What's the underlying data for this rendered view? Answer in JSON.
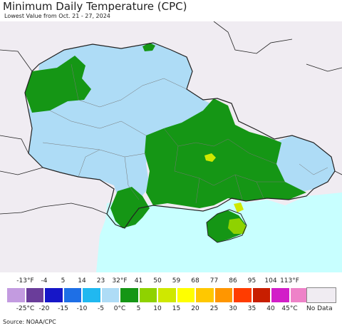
{
  "title": "Minimum Daily Temperature (CPC)",
  "subtitle": "Lowest Value from Oct. 21 - 27, 2024",
  "source": "Source: NOAA/CPC",
  "legend": {
    "fahrenheit_labels": [
      "-13°F",
      "-4",
      "5",
      "14",
      "23",
      "32°F",
      "41",
      "50",
      "59",
      "68",
      "77",
      "86",
      "95",
      "104",
      "113°F"
    ],
    "celsius_labels": [
      "-25°C",
      "-20",
      "-15",
      "-10",
      "-5",
      "0°C",
      "5",
      "10",
      "15",
      "20",
      "25",
      "30",
      "35",
      "40",
      "45°C"
    ],
    "colors": [
      "#c39be0",
      "#6a3d9a",
      "#1616c8",
      "#1e6fe6",
      "#20b8f0",
      "#aedcf6",
      "#159615",
      "#8fd200",
      "#cfe800",
      "#ffff00",
      "#ffc800",
      "#ff9600",
      "#ff3c00",
      "#c81e00",
      "#d21ec8",
      "#ee82c8"
    ],
    "no_data_label": "No Data",
    "no_data_color": "#f0ecf2"
  },
  "map_colors": {
    "land_outside": "#f0ecf2",
    "sea": "#c8ffff",
    "cool": "#aedcf6",
    "green": "#159615",
    "lime": "#8fd200",
    "yellowgreen": "#cfe800",
    "border": "#222222",
    "admin": "#777777"
  }
}
